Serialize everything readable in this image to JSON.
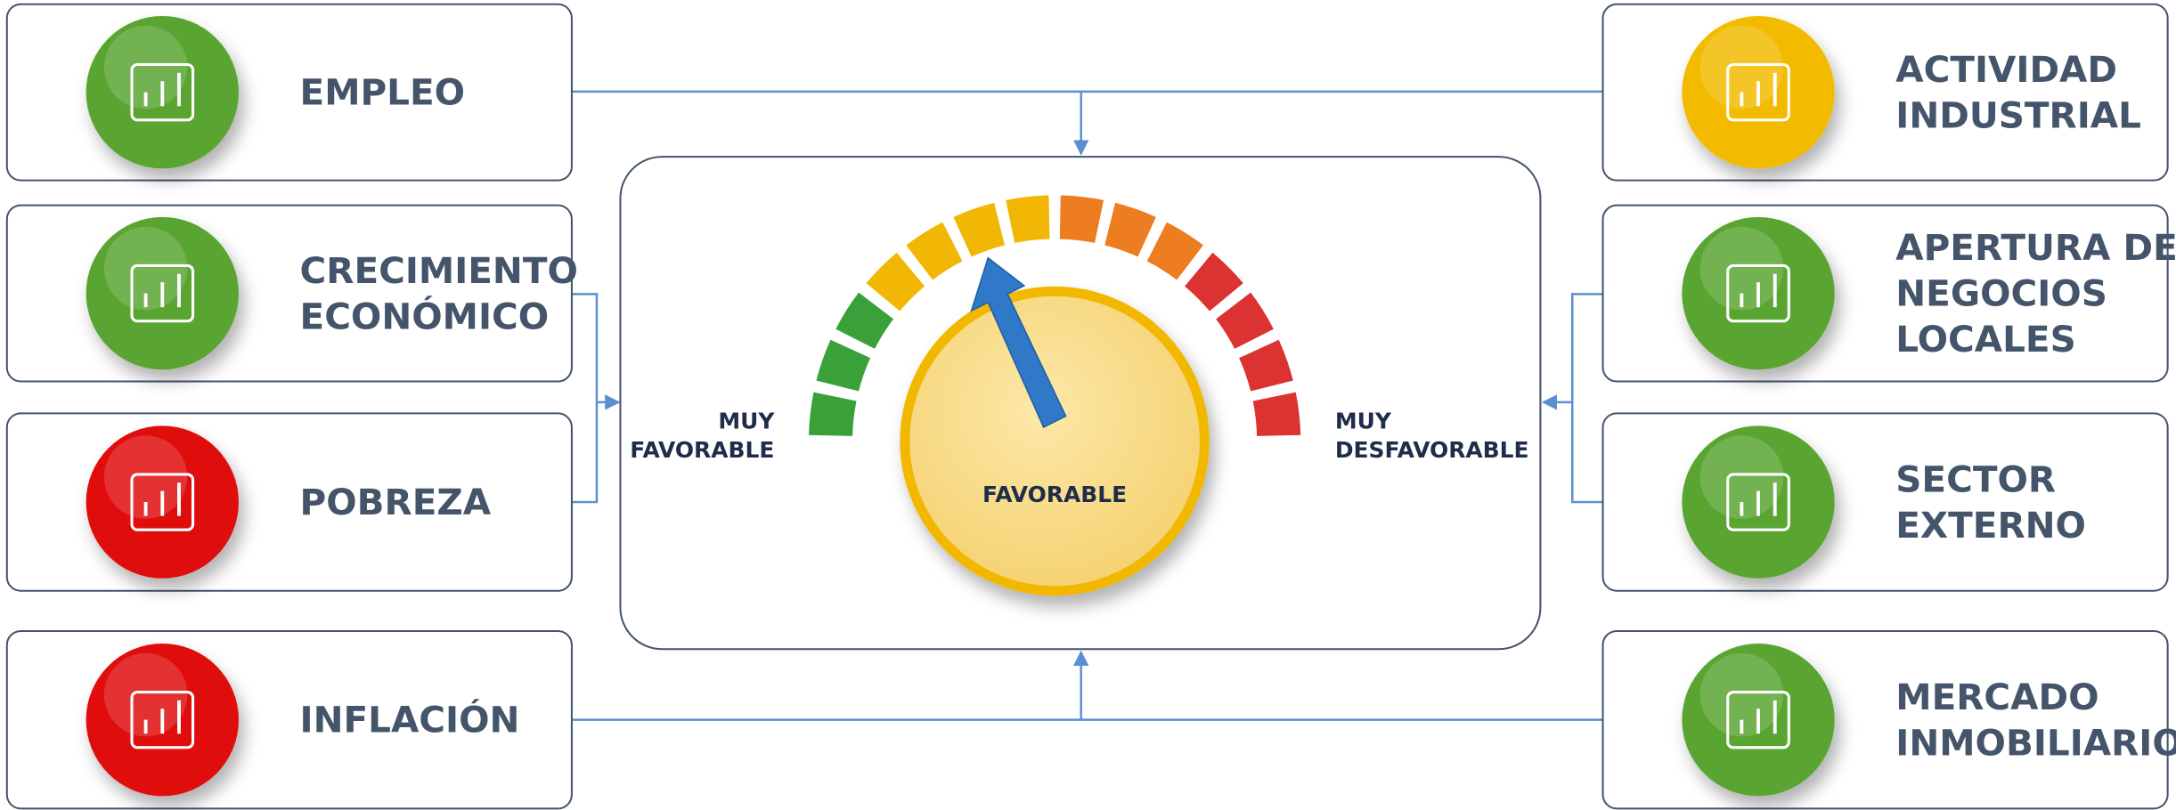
{
  "left": [
    {
      "label": [
        "EMPLEO"
      ],
      "color": "#5aa532"
    },
    {
      "label": [
        "CRECIMIENTO",
        "ECONÓMICO"
      ],
      "color": "#5aa532"
    },
    {
      "label": [
        "POBREZA"
      ],
      "color": "#e01010"
    },
    {
      "label": [
        "INFLACIÓN"
      ],
      "color": "#e01010"
    }
  ],
  "right": [
    {
      "label": [
        "ACTIVIDAD",
        "INDUSTRIAL"
      ],
      "color": "#f3bb00"
    },
    {
      "label": [
        "APERTURA DE",
        "NEGOCIOS",
        "LOCALES"
      ],
      "color": "#5aa532"
    },
    {
      "label": [
        "SECTOR",
        "EXTERNO"
      ],
      "color": "#5aa532"
    },
    {
      "label": [
        "MERCADO",
        "INMOBILIARIO"
      ],
      "color": "#5aa532"
    }
  ],
  "gauge": {
    "left_label": [
      "MUY",
      "FAVORABLE"
    ],
    "right_label": [
      "MUY",
      "DESFAVORABLE"
    ],
    "center_label": "FAVORABLE"
  }
}
